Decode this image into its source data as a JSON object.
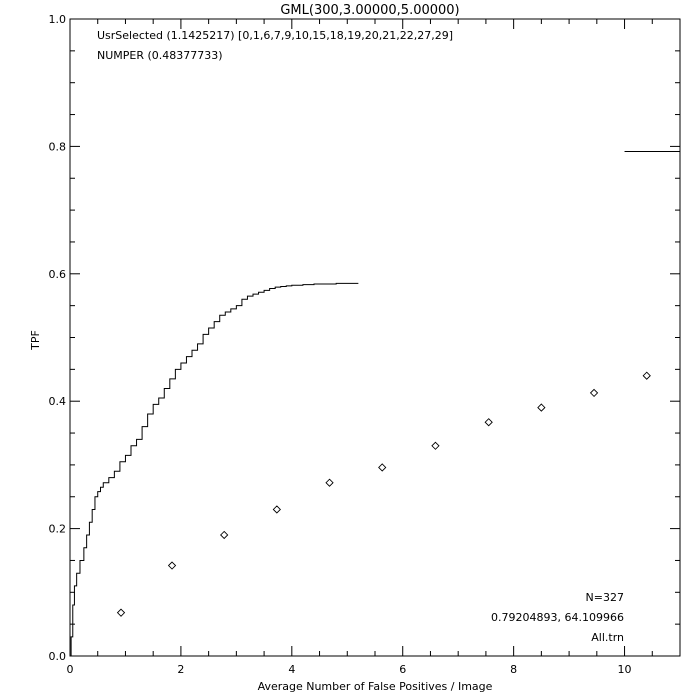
{
  "chart_data": {
    "type": "line",
    "title": "GML(300,3.00000,5.00000)",
    "xlabel": "Average Number of False Positives / Image",
    "ylabel": "TPF",
    "xlim": [
      0,
      11
    ],
    "ylim": [
      0,
      1
    ],
    "x_ticks": [
      0,
      2,
      4,
      6,
      8,
      10
    ],
    "y_ticks": [
      0.0,
      0.2,
      0.4,
      0.6,
      0.8,
      1.0
    ],
    "x_tick_labels": [
      "0",
      "2",
      "4",
      "6",
      "8",
      "10"
    ],
    "y_tick_labels": [
      "0.0",
      "0.2",
      "0.4",
      "0.6",
      "0.8",
      "1.0"
    ],
    "grid": false,
    "annotations_top_left": [
      "UsrSelected (1.1425217) [0,1,6,7,9,10,15,18,19,20,21,22,27,29]",
      "NUMPER (0.48377733)"
    ],
    "annotations_bottom_right": [
      "N=327",
      "0.79204893, 64.109966",
      "All.trn"
    ],
    "series": [
      {
        "style": "step-line",
        "x": [
          0,
          0.02,
          0.05,
          0.08,
          0.12,
          0.18,
          0.25,
          0.3,
          0.35,
          0.4,
          0.45,
          0.5,
          0.55,
          0.6,
          0.7,
          0.8,
          0.9,
          1.0,
          1.1,
          1.2,
          1.3,
          1.4,
          1.5,
          1.6,
          1.7,
          1.8,
          1.9,
          2.0,
          2.1,
          2.2,
          2.3,
          2.4,
          2.5,
          2.6,
          2.7,
          2.8,
          2.9,
          3.0,
          3.1,
          3.2,
          3.3,
          3.4,
          3.5,
          3.6,
          3.7,
          3.8,
          3.9,
          4.0,
          4.2,
          4.4,
          4.6,
          4.8,
          5.0,
          5.2
        ],
        "y": [
          0.0,
          0.03,
          0.08,
          0.11,
          0.13,
          0.15,
          0.17,
          0.19,
          0.21,
          0.23,
          0.25,
          0.258,
          0.265,
          0.272,
          0.28,
          0.29,
          0.305,
          0.315,
          0.33,
          0.34,
          0.36,
          0.38,
          0.395,
          0.405,
          0.42,
          0.435,
          0.45,
          0.46,
          0.47,
          0.48,
          0.49,
          0.505,
          0.515,
          0.525,
          0.535,
          0.54,
          0.545,
          0.55,
          0.56,
          0.565,
          0.568,
          0.571,
          0.574,
          0.577,
          0.579,
          0.58,
          0.581,
          0.582,
          0.583,
          0.584,
          0.584,
          0.585,
          0.585,
          0.585
        ]
      },
      {
        "style": "diamond-markers",
        "x": [
          0.92,
          1.84,
          2.78,
          3.73,
          4.68,
          5.63,
          6.59,
          7.55,
          8.5,
          9.45,
          10.4
        ],
        "y": [
          0.068,
          0.142,
          0.19,
          0.23,
          0.272,
          0.296,
          0.33,
          0.367,
          0.39,
          0.413,
          0.44
        ]
      },
      {
        "style": "segment",
        "x": [
          10.0,
          11.0
        ],
        "y": [
          0.792,
          0.792
        ]
      }
    ]
  }
}
